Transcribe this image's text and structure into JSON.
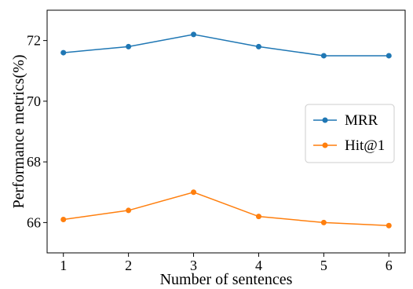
{
  "chart_data": {
    "type": "line",
    "title": "",
    "xlabel": "Number of sentences",
    "ylabel": "Performance metrics(%)",
    "x": [
      1,
      2,
      3,
      4,
      5,
      6
    ],
    "xlim": [
      0.75,
      6.25
    ],
    "ylim": [
      65.0,
      73.0
    ],
    "xticks": [
      "1",
      "2",
      "3",
      "4",
      "5",
      "6"
    ],
    "yticks": [
      66,
      68,
      70,
      72
    ],
    "grid": false,
    "legend_position": "center-right",
    "series": [
      {
        "name": "MRR",
        "color": "#1f77b4",
        "values": [
          71.6,
          71.8,
          72.2,
          71.8,
          71.5,
          71.5
        ]
      },
      {
        "name": "Hit@1",
        "color": "#ff7f0e",
        "values": [
          66.1,
          66.4,
          67.0,
          66.2,
          66.0,
          65.9
        ]
      }
    ]
  }
}
